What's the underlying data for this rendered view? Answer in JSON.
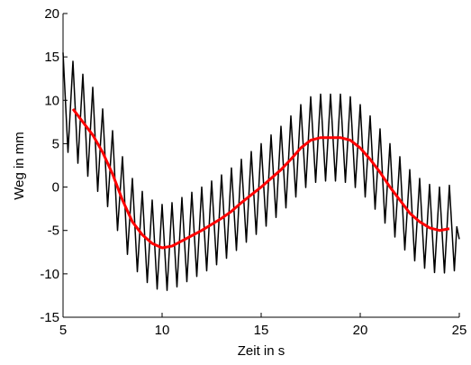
{
  "chart_data": {
    "type": "line",
    "xlabel": "Zeit in s",
    "ylabel": "Weg in mm",
    "xlim": [
      5,
      25
    ],
    "ylim": [
      -15,
      20
    ],
    "xticks": [
      5,
      10,
      15,
      20,
      25
    ],
    "yticks": [
      -15,
      -10,
      -5,
      0,
      5,
      10,
      15,
      20
    ],
    "series": [
      {
        "color": "#000000",
        "x": [
          5,
          5.125,
          5.25,
          5.375,
          5.5,
          5.625,
          5.75,
          5.875,
          6,
          6.125,
          6.25,
          6.375,
          6.5,
          6.625,
          6.75,
          6.875,
          7,
          7.125,
          7.25,
          7.375,
          7.5,
          7.625,
          7.75,
          7.875,
          8,
          8.125,
          8.25,
          8.375,
          8.5,
          8.625,
          8.75,
          8.875,
          9,
          9.125,
          9.25,
          9.375,
          9.5,
          9.625,
          9.75,
          9.875,
          10,
          10.125,
          10.25,
          10.375,
          10.5,
          10.625,
          10.75,
          10.875,
          11,
          11.125,
          11.25,
          11.375,
          11.5,
          11.625,
          11.75,
          11.875,
          12,
          12.125,
          12.25,
          12.375,
          12.5,
          12.625,
          12.75,
          12.875,
          13,
          13.125,
          13.25,
          13.375,
          13.5,
          13.625,
          13.75,
          13.875,
          14,
          14.125,
          14.25,
          14.375,
          14.5,
          14.625,
          14.75,
          14.875,
          15,
          15.125,
          15.25,
          15.375,
          15.5,
          15.625,
          15.75,
          15.875,
          16,
          16.125,
          16.25,
          16.375,
          16.5,
          16.625,
          16.75,
          16.875,
          17,
          17.125,
          17.25,
          17.375,
          17.5,
          17.625,
          17.75,
          17.875,
          18,
          18.125,
          18.25,
          18.375,
          18.5,
          18.625,
          18.75,
          18.875,
          19,
          19.125,
          19.25,
          19.375,
          19.5,
          19.625,
          19.75,
          19.875,
          20,
          20.125,
          20.25,
          20.375,
          20.5,
          20.625,
          20.75,
          20.875,
          21,
          21.125,
          21.25,
          21.375,
          21.5,
          21.625,
          21.75,
          21.875,
          22,
          22.125,
          22.25,
          22.375,
          22.5,
          22.625,
          22.75,
          22.875,
          23,
          23.125,
          23.25,
          23.375,
          23.5,
          23.625,
          23.75,
          23.875,
          24,
          24.125,
          24.25,
          24.375,
          24.5,
          24.625,
          24.75,
          24.875,
          25
        ],
        "values": [
          15.5,
          9.75,
          4,
          9.25,
          14.5,
          8.63,
          2.75,
          7.88,
          13,
          7.13,
          1.25,
          6.38,
          11.5,
          5.5,
          -0.5,
          4.5,
          9,
          3.38,
          -2.25,
          2.13,
          6.5,
          0.75,
          -5,
          -0.75,
          3.5,
          -2.13,
          -7.75,
          -3.38,
          1,
          -4.38,
          -9.75,
          -5.13,
          -0.5,
          -5.75,
          -11,
          -6.25,
          -1.5,
          -6.63,
          -11.75,
          -6.88,
          -2,
          -6.95,
          -11.9,
          -6.85,
          -1.8,
          -6.65,
          -11.5,
          -6.35,
          -1.2,
          -6.05,
          -10.9,
          -5.75,
          -0.6,
          -5.45,
          -10.3,
          -5.15,
          0,
          -4.83,
          -9.65,
          -4.48,
          0.7,
          -4.13,
          -8.95,
          -3.78,
          1.4,
          -3.4,
          -8.2,
          -3,
          2.2,
          -2.55,
          -7.3,
          -2.05,
          3.2,
          -1.58,
          -6.35,
          -1.13,
          4.1,
          -0.68,
          -5.45,
          -0.23,
          5,
          0.25,
          -4.5,
          0.75,
          6,
          1.25,
          -3.5,
          1.75,
          7,
          2.3,
          -2.4,
          2.9,
          8.2,
          3.53,
          -1.15,
          4.18,
          9.5,
          4.73,
          -0.05,
          5.18,
          10.4,
          5.48,
          0.55,
          5.63,
          10.7,
          5.7,
          0.7,
          5.7,
          10.7,
          5.7,
          0.7,
          5.7,
          10.7,
          5.63,
          0.55,
          5.48,
          10.4,
          5.18,
          -0.05,
          4.73,
          9.5,
          4.18,
          -1.15,
          3.53,
          8.2,
          2.83,
          -2.55,
          2.08,
          6.7,
          1.28,
          -4.15,
          0.43,
          5,
          -0.38,
          -5.75,
          -1.13,
          3.5,
          -1.88,
          -7.25,
          -2.63,
          2,
          -3.25,
          -8.5,
          -3.75,
          1,
          -4.18,
          -9.35,
          -4.53,
          0.3,
          -4.78,
          -9.85,
          -4.93,
          0,
          -4.95,
          -9.9,
          -4.85,
          0.2,
          -4.73,
          -9.65,
          -4.58,
          -6
        ]
      },
      {
        "color": "#ff0000",
        "x": [
          5.5,
          6,
          6.5,
          7,
          7.5,
          8,
          8.5,
          9,
          9.5,
          10,
          10.5,
          11,
          11.5,
          12,
          12.5,
          13,
          13.5,
          14,
          14.5,
          15,
          15.5,
          16,
          16.5,
          17,
          17.5,
          18,
          18.5,
          19,
          19.5,
          20,
          20.5,
          21,
          21.5,
          22,
          22.5,
          23,
          23.5,
          24,
          24.5
        ],
        "values": [
          9,
          7.5,
          6,
          4,
          1.5,
          -1.5,
          -4,
          -5.5,
          -6.5,
          -7,
          -6.8,
          -6.2,
          -5.6,
          -5,
          -4.3,
          -3.6,
          -2.8,
          -1.8,
          -0.9,
          0,
          1,
          2,
          3.2,
          4.5,
          5.4,
          5.7,
          5.7,
          5.7,
          5.4,
          4.5,
          3.2,
          1.7,
          0,
          -1.5,
          -3,
          -4,
          -4.7,
          -5,
          -4.8
        ]
      }
    ]
  }
}
